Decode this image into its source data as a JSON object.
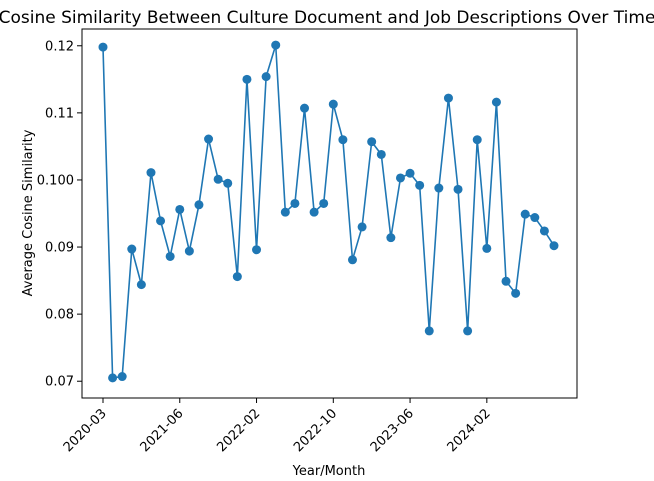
{
  "chart_data": {
    "type": "line",
    "title": "Cosine Similarity Between Culture Document and Job Descriptions Over Time",
    "xlabel": "Year/Month",
    "ylabel": "Average Cosine Similarity",
    "x_tick_labels": [
      "2020-03",
      "2021-06",
      "2022-02",
      "2022-10",
      "2023-06",
      "2024-02"
    ],
    "y_ticks": [
      0.07,
      0.08,
      0.09,
      0.1,
      0.11,
      0.12
    ],
    "y_tick_labels": [
      "0.07",
      "0.08",
      "0.09",
      "0.100",
      "0.11",
      "0.12"
    ],
    "ylim": [
      0.0675,
      0.1225
    ],
    "grid": false,
    "legend": "none",
    "line_color": "#1f77b4",
    "marker": "circle",
    "series": [
      {
        "values": [
          0.1198,
          0.0705,
          0.0707,
          0.0897,
          0.0844,
          0.1011,
          0.0939,
          0.0886,
          0.0956,
          0.0894,
          0.0963,
          0.1061,
          0.1001,
          0.0995,
          0.0856,
          0.115,
          0.0896,
          0.1154,
          0.1201,
          0.0952,
          0.0965,
          0.1107,
          0.0952,
          0.0965,
          0.1113,
          0.106,
          0.0881,
          0.093,
          0.1057,
          0.1038,
          0.0914,
          0.1003,
          0.101,
          0.0992,
          0.0775,
          0.0988,
          0.1122,
          0.0986,
          0.0775,
          0.106,
          0.0898,
          0.1116,
          0.0849,
          0.0831,
          0.0949,
          0.0944,
          0.0924,
          0.0902
        ]
      }
    ]
  }
}
